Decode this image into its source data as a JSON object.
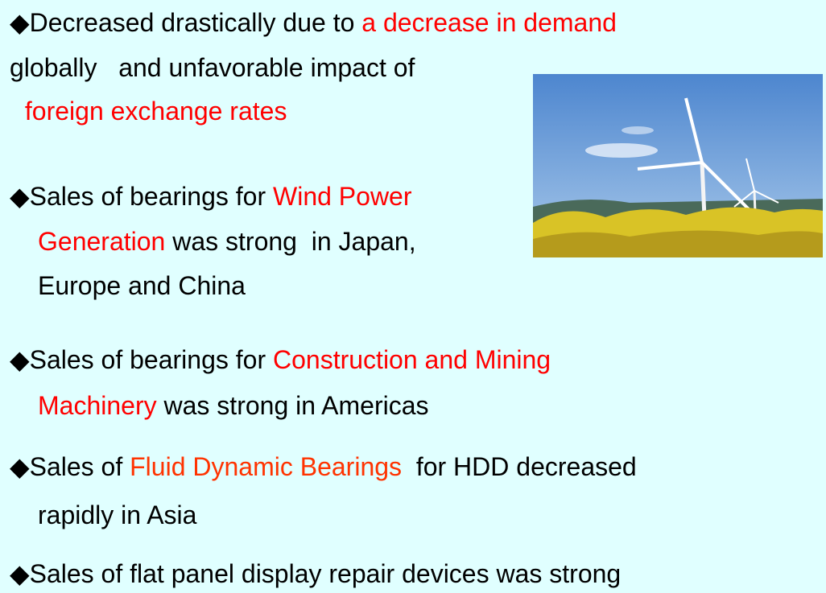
{
  "lines": [
    {
      "segments": [
        {
          "text": "◆Decreased drastically due to ",
          "color": "#000000"
        },
        {
          "text": "a decrease in demand",
          "color": "#ff0000"
        }
      ]
    },
    {
      "segments": [
        {
          "text": "globally   and unfavorable impact of",
          "color": "#000000"
        }
      ]
    },
    {
      "segments": [
        {
          "text": " foreign exchange rates",
          "color": "#ff0000"
        }
      ]
    },
    {
      "segments": [
        {
          "text": "◆Sales of bearings for ",
          "color": "#000000"
        },
        {
          "text": "Wind Power",
          "color": "#ff0000"
        }
      ]
    },
    {
      "segments": [
        {
          "text": "Generation",
          "color": "#ff0000"
        },
        {
          "text": " was strong  in Japan,",
          "color": "#000000"
        }
      ]
    },
    {
      "segments": [
        {
          "text": "Europe and China",
          "color": "#000000"
        }
      ]
    },
    {
      "segments": [
        {
          "text": "◆Sales of bearings for ",
          "color": "#000000"
        },
        {
          "text": "Construction and Mining",
          "color": "#ff0000"
        }
      ]
    },
    {
      "segments": [
        {
          "text": "Machinery",
          "color": "#ff0000"
        },
        {
          "text": " was strong in Americas",
          "color": "#000000"
        }
      ]
    },
    {
      "segments": [
        {
          "text": "◆Sales of ",
          "color": "#000000"
        },
        {
          "text": "Fluid Dynamic Bearings",
          "color": "#ff3300"
        },
        {
          "text": "  for HDD decreased",
          "color": "#000000"
        }
      ]
    },
    {
      "segments": [
        {
          "text": "rapidly in Asia",
          "color": "#000000"
        }
      ]
    },
    {
      "segments": [
        {
          "text": "◆Sales of flat panel display repair devices was strong",
          "color": "#000000"
        }
      ]
    }
  ]
}
